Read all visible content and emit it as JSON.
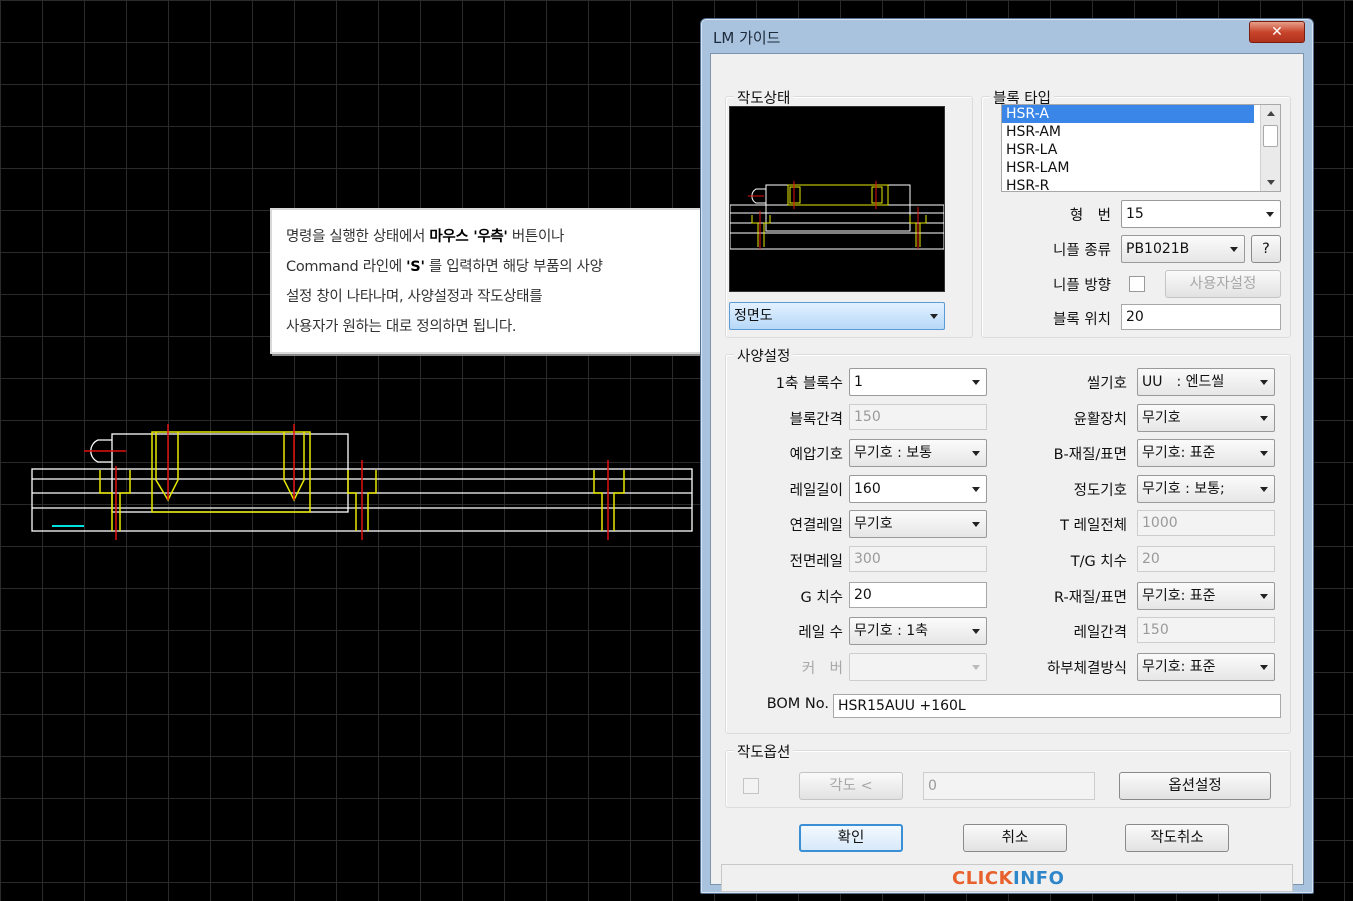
{
  "callout": {
    "line1_pre": "명령을 실행한 상태에서 ",
    "line1_bold": "마우스 '우측'",
    "line1_post": " 버튼이나",
    "line2_pre": "Command 라인에 ",
    "line2_bold": "'S'",
    "line2_post": " 를 입력하면 해당 부품의 사양",
    "line3": "설정 창이 나타나며, 사양설정과 작도상태를",
    "line4": "사용자가 원하는 대로 정의하면 됩니다."
  },
  "dialog": {
    "title": "LM 가이드",
    "close_glyph": "✕"
  },
  "drawing_state": {
    "group_title": "작도상태",
    "view_combo": "정면도"
  },
  "block_type": {
    "group_title": "블록 타입",
    "items": [
      "HSR-A",
      "HSR-AM",
      "HSR-LA",
      "HSR-LAM",
      "HSR-R"
    ],
    "selected_index": 0,
    "model_label": "형　번",
    "model_value": "15",
    "nipple_type_label": "니플 종류",
    "nipple_type_value": "PB1021B",
    "help_button": "?",
    "nipple_dir_label": "니플 방향",
    "user_setting_button": "사용자설정",
    "block_pos_label": "블록 위치",
    "block_pos_value": "20"
  },
  "spec": {
    "group_title": "사양설정",
    "left": [
      {
        "label": "1축 블록수",
        "value": "1",
        "kind": "combo-white"
      },
      {
        "label": "블록간격",
        "value": "150",
        "kind": "field-dis"
      },
      {
        "label": "예압기호",
        "value": "무기호 : 보통",
        "kind": "combo"
      },
      {
        "label": "레일길이",
        "value": "160",
        "kind": "combo-white"
      },
      {
        "label": "연결레일",
        "value": "무기호",
        "kind": "combo"
      },
      {
        "label": "전면레일",
        "value": "300",
        "kind": "field-dis"
      },
      {
        "label": "G 치수",
        "value": "20",
        "kind": "field"
      },
      {
        "label": "레일 수",
        "value": "무기호 : 1축",
        "kind": "combo"
      },
      {
        "label": "커　버",
        "value": "",
        "kind": "combo-dis"
      }
    ],
    "right": [
      {
        "label": "씰기호",
        "value": "UU　: 엔드씰",
        "kind": "combo"
      },
      {
        "label": "윤활장치",
        "value": "무기호",
        "kind": "combo"
      },
      {
        "label": "B-재질/표면",
        "value": "무기호: 표준",
        "kind": "combo"
      },
      {
        "label": "정도기호",
        "value": "무기호 : 보통;",
        "kind": "combo"
      },
      {
        "label": "T 레일전체",
        "value": "1000",
        "kind": "field-dis"
      },
      {
        "label": "T/G 치수",
        "value": "20",
        "kind": "field-dis"
      },
      {
        "label": "R-재질/표면",
        "value": "무기호: 표준",
        "kind": "combo"
      },
      {
        "label": "레일간격",
        "value": "150",
        "kind": "field-dis"
      },
      {
        "label": "하부체결방식",
        "value": "무기호: 표준",
        "kind": "combo"
      }
    ],
    "bom_label": "BOM No.",
    "bom_value": "HSR15AUU +160L"
  },
  "draw_options": {
    "group_title": "작도옵션",
    "angle_button": "각도 <",
    "angle_value": "0",
    "option_button": "옵션설정"
  },
  "buttons": {
    "ok": "확인",
    "cancel": "취소",
    "cancel_drawing": "작도취소"
  },
  "brand": {
    "part1": "CLICK",
    "part2": "INFO"
  },
  "colors": {
    "cad_background": "#000000",
    "outline": "#ffffff",
    "block": "#e8e800",
    "center_line": "#e01010",
    "accent": "#00e0e0",
    "selection": "#3a85e8"
  }
}
